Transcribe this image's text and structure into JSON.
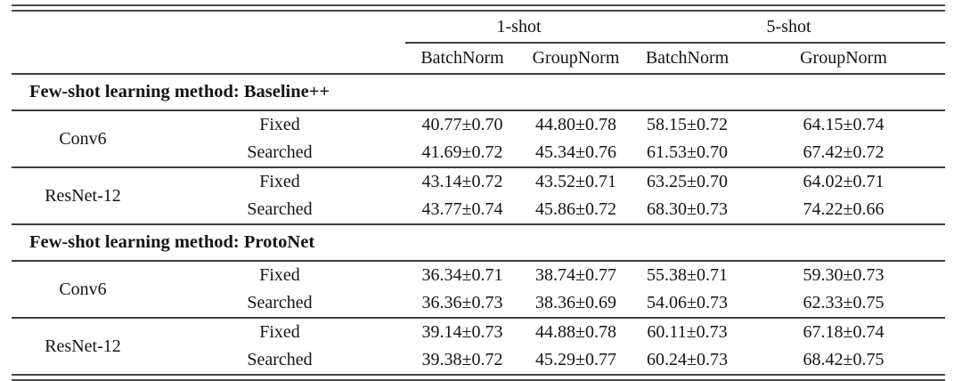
{
  "page": {
    "background": "#ffffff",
    "text_color": "#141414",
    "rule_color": "#3e3e3e"
  },
  "table": {
    "group_headers": [
      {
        "label": "1-shot"
      },
      {
        "label": "5-shot"
      }
    ],
    "column_headers": [
      "BatchNorm",
      "GroupNorm",
      "BatchNorm",
      "GroupNorm"
    ],
    "sections": [
      {
        "title": "Few-shot learning method: Baseline++",
        "blocks": [
          {
            "architecture": "Conv6",
            "rows": [
              {
                "variant": "Fixed",
                "cells": [
                  {
                    "text": "40.77±0.70",
                    "bold": false
                  },
                  {
                    "text": "44.80±0.78",
                    "bold": false
                  },
                  {
                    "text": "58.15±0.72",
                    "bold": false
                  },
                  {
                    "text": "64.15±0.74",
                    "bold": false
                  }
                ]
              },
              {
                "variant": "Searched",
                "cells": [
                  {
                    "text": "41.69±0.72",
                    "bold": true
                  },
                  {
                    "text": "45.34±0.76",
                    "bold": true
                  },
                  {
                    "text": "61.53±0.70",
                    "bold": true
                  },
                  {
                    "text": "67.42±0.72",
                    "bold": true
                  }
                ]
              }
            ]
          },
          {
            "architecture": "ResNet-12",
            "rows": [
              {
                "variant": "Fixed",
                "cells": [
                  {
                    "text": "43.14±0.72",
                    "bold": false
                  },
                  {
                    "text": "43.52±0.71",
                    "bold": false
                  },
                  {
                    "text": "63.25±0.70",
                    "bold": false
                  },
                  {
                    "text": "64.02±0.71",
                    "bold": false
                  }
                ]
              },
              {
                "variant": "Searched",
                "cells": [
                  {
                    "text": "43.77±0.74",
                    "bold": true
                  },
                  {
                    "text": "45.86±0.72",
                    "bold": true
                  },
                  {
                    "text": "68.30±0.73",
                    "bold": true
                  },
                  {
                    "text": "74.22±0.66",
                    "bold": true
                  }
                ]
              }
            ]
          }
        ]
      },
      {
        "title": "Few-shot learning method: ProtoNet",
        "blocks": [
          {
            "architecture": "Conv6",
            "rows": [
              {
                "variant": "Fixed",
                "cells": [
                  {
                    "text": "36.34±0.71",
                    "bold": false
                  },
                  {
                    "text": "38.74±0.77",
                    "bold": true
                  },
                  {
                    "text": "55.38±0.71",
                    "bold": true
                  },
                  {
                    "text": "59.30±0.73",
                    "bold": false
                  }
                ]
              },
              {
                "variant": "Searched",
                "cells": [
                  {
                    "text": "36.36±0.73",
                    "bold": true
                  },
                  {
                    "text": "38.36±0.69",
                    "bold": false
                  },
                  {
                    "text": "54.06±0.73",
                    "bold": false
                  },
                  {
                    "text": "62.33±0.75",
                    "bold": true
                  }
                ]
              }
            ]
          },
          {
            "architecture": "ResNet-12",
            "rows": [
              {
                "variant": "Fixed",
                "cells": [
                  {
                    "text": "39.14±0.73",
                    "bold": false
                  },
                  {
                    "text": "44.88±0.78",
                    "bold": false
                  },
                  {
                    "text": "60.11±0.73",
                    "bold": false
                  },
                  {
                    "text": "67.18±0.74",
                    "bold": false
                  }
                ]
              },
              {
                "variant": "Searched",
                "cells": [
                  {
                    "text": "39.38±0.72",
                    "bold": true
                  },
                  {
                    "text": "45.29±0.77",
                    "bold": true
                  },
                  {
                    "text": "60.24±0.73",
                    "bold": true
                  },
                  {
                    "text": "68.42±0.75",
                    "bold": true
                  }
                ]
              }
            ]
          }
        ]
      }
    ]
  }
}
